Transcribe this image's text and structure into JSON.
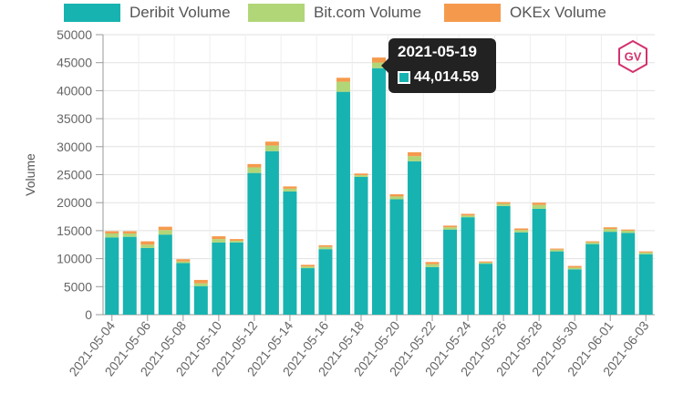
{
  "chart_data": {
    "type": "bar",
    "stacked": true,
    "categories": [
      "2021-05-04",
      "2021-05-05",
      "2021-05-06",
      "2021-05-07",
      "2021-05-08",
      "2021-05-09",
      "2021-05-10",
      "2021-05-11",
      "2021-05-12",
      "2021-05-13",
      "2021-05-14",
      "2021-05-15",
      "2021-05-16",
      "2021-05-17",
      "2021-05-18",
      "2021-05-19",
      "2021-05-20",
      "2021-05-21",
      "2021-05-22",
      "2021-05-23",
      "2021-05-24",
      "2021-05-25",
      "2021-05-26",
      "2021-05-27",
      "2021-05-28",
      "2021-05-29",
      "2021-05-30",
      "2021-05-31",
      "2021-06-01",
      "2021-06-02",
      "2021-06-03"
    ],
    "tick_labels": [
      "2021-05-04",
      "2021-05-06",
      "2021-05-08",
      "2021-05-10",
      "2021-05-12",
      "2021-05-14",
      "2021-05-16",
      "2021-05-18",
      "2021-05-20",
      "2021-05-22",
      "2021-05-24",
      "2021-05-26",
      "2021-05-28",
      "2021-05-30",
      "2021-06-01",
      "2021-06-03"
    ],
    "series": [
      {
        "name": "Deribit Volume",
        "color": "#17b3b0",
        "values": [
          13800,
          13900,
          11900,
          14300,
          9200,
          5100,
          12900,
          12900,
          25300,
          29200,
          22000,
          8300,
          11700,
          39800,
          24600,
          44014.59,
          20600,
          27400,
          8500,
          15200,
          17400,
          9100,
          19400,
          14700,
          18900,
          11300,
          8100,
          12600,
          14800,
          14600,
          10800
        ]
      },
      {
        "name": "Bit.com Volume",
        "color": "#b1d678",
        "values": [
          700,
          600,
          600,
          800,
          300,
          500,
          600,
          300,
          1000,
          1000,
          500,
          300,
          400,
          1800,
          300,
          1000,
          500,
          900,
          500,
          400,
          300,
          200,
          400,
          400,
          700,
          300,
          300,
          300,
          500,
          400,
          300
        ]
      },
      {
        "name": "OKEx Volume",
        "color": "#f59a4d",
        "values": [
          400,
          400,
          600,
          600,
          400,
          600,
          500,
          300,
          600,
          700,
          400,
          300,
          300,
          700,
          300,
          900,
          400,
          700,
          400,
          300,
          300,
          200,
          300,
          300,
          400,
          200,
          300,
          200,
          300,
          200,
          200
        ]
      }
    ],
    "ylabel": "Volume",
    "ylim": [
      0,
      50000
    ],
    "yticks": [
      0,
      5000,
      10000,
      15000,
      20000,
      25000,
      30000,
      35000,
      40000,
      45000,
      50000
    ],
    "grid": "horizontal",
    "legend_position": "top",
    "tooltip": {
      "title": "2021-05-19",
      "value": "44,014.59",
      "series": "Deribit Volume"
    }
  },
  "logo_text": "GV"
}
